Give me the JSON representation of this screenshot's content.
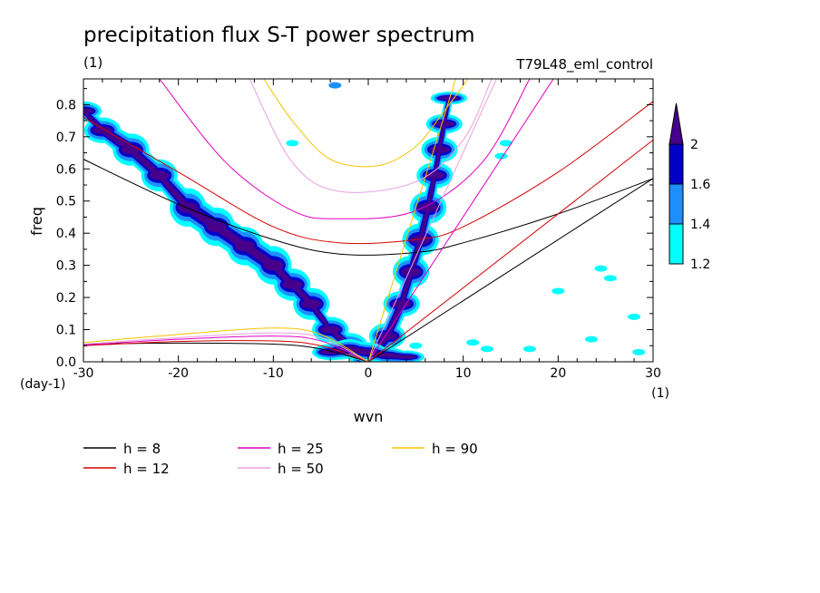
{
  "chart_data": {
    "type": "heatmap",
    "title": "precipitation flux S-T power spectrum",
    "subtitle_left": "(1)",
    "subtitle_right": "T79L48_eml_control",
    "xlabel": "wvn",
    "ylabel": "freq",
    "x_unit": "(1)",
    "y_unit": "(day-1)",
    "xlim": [
      -30,
      30
    ],
    "ylim": [
      0,
      0.88
    ],
    "xticks": [
      -30,
      -20,
      -10,
      0,
      10,
      20,
      30
    ],
    "xtick_labels": [
      "-30",
      "-20",
      "-10",
      "0",
      "10",
      "20",
      "30"
    ],
    "yticks": [
      0,
      0.1,
      0.2,
      0.3,
      0.4,
      0.5,
      0.6,
      0.7,
      0.8
    ],
    "ytick_labels": [
      "0.0",
      "0.1",
      "0.2",
      "0.3",
      "0.4",
      "0.5",
      "0.6",
      "0.7",
      "0.8"
    ],
    "colorbar": {
      "levels": [
        1.2,
        1.4,
        1.6,
        2
      ],
      "labels": [
        "1.2",
        "1.4",
        "1.6",
        "2"
      ],
      "colors": [
        "#00ffff",
        "#1e8fff",
        "#0000c8",
        "#46008c"
      ]
    },
    "bands": [
      {
        "name": "westward band",
        "points": [
          [
            -30,
            0.78
          ],
          [
            -28,
            0.72
          ],
          [
            -25,
            0.66
          ],
          [
            -22,
            0.58
          ],
          [
            -19,
            0.48
          ],
          [
            -16,
            0.42
          ],
          [
            -13,
            0.36
          ],
          [
            -10,
            0.3
          ],
          [
            -8,
            0.24
          ],
          [
            -6,
            0.18
          ],
          [
            -4,
            0.1
          ],
          [
            -2,
            0.05
          ],
          [
            0,
            0.02
          ]
        ],
        "widths": [
          0.03,
          0.04,
          0.05,
          0.05,
          0.06,
          0.06,
          0.06,
          0.06,
          0.05,
          0.05,
          0.04,
          0.04,
          0.03
        ],
        "max_level": 3
      },
      {
        "name": "eastward kelvin band",
        "points": [
          [
            0,
            0.01
          ],
          [
            2,
            0.08
          ],
          [
            3.5,
            0.18
          ],
          [
            4.5,
            0.28
          ],
          [
            5.5,
            0.38
          ],
          [
            6.3,
            0.48
          ],
          [
            7,
            0.58
          ],
          [
            7.5,
            0.66
          ],
          [
            8,
            0.74
          ],
          [
            8.5,
            0.82
          ]
        ],
        "widths": [
          0.03,
          0.04,
          0.04,
          0.05,
          0.05,
          0.05,
          0.04,
          0.04,
          0.03,
          0.02
        ],
        "max_level": 3
      },
      {
        "name": "low frequency base",
        "points": [
          [
            -4,
            0.03
          ],
          [
            -2,
            0.04
          ],
          [
            0,
            0.03
          ],
          [
            2,
            0.02
          ],
          [
            4,
            0.015
          ]
        ],
        "widths": [
          0.025,
          0.03,
          0.03,
          0.025,
          0.02
        ],
        "max_level": 3
      }
    ],
    "scatter_patches": [
      {
        "x": 5,
        "y": 0.05,
        "level": 0
      },
      {
        "x": 11,
        "y": 0.06,
        "level": 0
      },
      {
        "x": 12.5,
        "y": 0.04,
        "level": 0
      },
      {
        "x": 17,
        "y": 0.04,
        "level": 0
      },
      {
        "x": 23.5,
        "y": 0.07,
        "level": 0
      },
      {
        "x": 28.5,
        "y": 0.03,
        "level": 0
      },
      {
        "x": 20,
        "y": 0.22,
        "level": 0
      },
      {
        "x": 24.5,
        "y": 0.29,
        "level": 0
      },
      {
        "x": 25.5,
        "y": 0.26,
        "level": 0
      },
      {
        "x": 28,
        "y": 0.14,
        "level": 0
      },
      {
        "x": 14.5,
        "y": 0.68,
        "level": 0
      },
      {
        "x": -8,
        "y": 0.68,
        "level": 0
      },
      {
        "x": -3.5,
        "y": 0.86,
        "level": 1
      },
      {
        "x": 14,
        "y": 0.64,
        "level": 0
      }
    ],
    "dispersion_curves": [
      {
        "h": "8",
        "color": "#000000",
        "kelvin_endpoint": [
          30,
          0.57
        ],
        "rossby": [
          [
            -30,
            0.055
          ],
          [
            -20,
            0.058
          ],
          [
            -10,
            0.055
          ],
          [
            -5,
            0.04
          ],
          [
            0,
            0
          ]
        ],
        "gravity": [
          [
            -30,
            0.63
          ],
          [
            -20,
            0.49
          ],
          [
            -10,
            0.38
          ],
          [
            -3,
            0.335
          ],
          [
            5,
            0.34
          ],
          [
            10,
            0.37
          ],
          [
            20,
            0.46
          ],
          [
            30,
            0.57
          ]
        ]
      },
      {
        "h": "12",
        "color": "#d40000",
        "kelvin_endpoint": [
          30,
          0.69
        ],
        "rossby": [
          [
            -30,
            0.05
          ],
          [
            -20,
            0.063
          ],
          [
            -10,
            0.065
          ],
          [
            -5,
            0.05
          ],
          [
            0,
            0
          ]
        ],
        "gravity": [
          [
            -30,
            0.76
          ],
          [
            -20,
            0.59
          ],
          [
            -10,
            0.42
          ],
          [
            -3,
            0.37
          ],
          [
            5,
            0.38
          ],
          [
            10,
            0.42
          ],
          [
            20,
            0.59
          ],
          [
            30,
            0.81
          ]
        ]
      },
      {
        "h": "25",
        "color": "#e000c0",
        "kelvin_endpoint": [
          19.5,
          0.88
        ],
        "rossby": [
          [
            -30,
            0.052
          ],
          [
            -20,
            0.07
          ],
          [
            -10,
            0.08
          ],
          [
            -5,
            0.065
          ],
          [
            0,
            0
          ]
        ],
        "gravity": [
          [
            -22,
            0.88
          ],
          [
            -15,
            0.62
          ],
          [
            -8,
            0.47
          ],
          [
            -3,
            0.445
          ],
          [
            5,
            0.47
          ],
          [
            12,
            0.62
          ],
          [
            17,
            0.88
          ]
        ]
      },
      {
        "h": "50",
        "color": "#e8a0e0",
        "kelvin_endpoint": [
          13.5,
          0.88
        ],
        "rossby": [
          [
            -30,
            0.055
          ],
          [
            -20,
            0.075
          ],
          [
            -10,
            0.09
          ],
          [
            -5,
            0.075
          ],
          [
            0,
            0
          ]
        ],
        "gravity": [
          [
            -12.5,
            0.88
          ],
          [
            -8,
            0.62
          ],
          [
            -3,
            0.53
          ],
          [
            5,
            0.56
          ],
          [
            10,
            0.69
          ],
          [
            13,
            0.88
          ]
        ]
      },
      {
        "h": "90",
        "color": "#f5c400",
        "kelvin_endpoint": [
          9.2,
          0.88
        ],
        "rossby": [
          [
            -30,
            0.06
          ],
          [
            -20,
            0.085
          ],
          [
            -10,
            0.105
          ],
          [
            -5,
            0.085
          ],
          [
            0,
            0
          ]
        ],
        "gravity": [
          [
            -11,
            0.88
          ],
          [
            -8,
            0.75
          ],
          [
            -4,
            0.63
          ],
          [
            1,
            0.61
          ],
          [
            5,
            0.67
          ],
          [
            8,
            0.78
          ],
          [
            10.5,
            0.88
          ]
        ]
      }
    ],
    "legend": [
      {
        "label": "h =  8",
        "color": "#000000"
      },
      {
        "label": "h = 12",
        "color": "#d40000"
      },
      {
        "label": "h = 25",
        "color": "#e000c0"
      },
      {
        "label": "h = 50",
        "color": "#e8a0e0"
      },
      {
        "label": "h = 90",
        "color": "#f5c400"
      }
    ]
  }
}
